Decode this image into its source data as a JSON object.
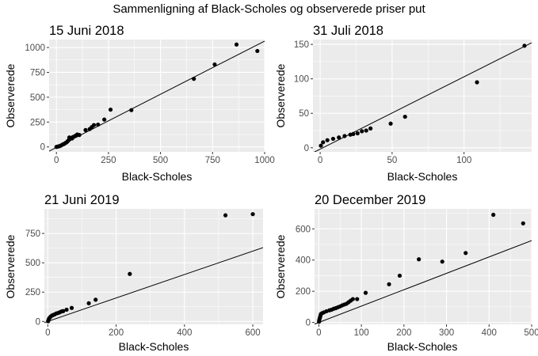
{
  "figure": {
    "title": "Sammenligning af Black-Scholes og observerede priser put"
  },
  "colors": {
    "panel_background": "#ebebeb",
    "gridline": "#ffffff",
    "point": "#000000",
    "line": "#000000",
    "tick_text": "#4d4d4d"
  },
  "chart_data": [
    {
      "type": "scatter",
      "title": "15 Juni 2018",
      "xlabel": "Black-Scholes",
      "ylabel": "Observerede",
      "xlim": [
        -35,
        1000
      ],
      "ylim": [
        -50,
        1080
      ],
      "xticks": [
        0,
        250,
        500,
        750,
        1000
      ],
      "xtick_labels": [
        "0",
        "250",
        "500",
        "750",
        "1000"
      ],
      "yticks": [
        0,
        250,
        500,
        750,
        1000
      ],
      "ytick_labels": [
        "0",
        "250",
        "500",
        "750",
        "1000"
      ],
      "grid": true,
      "reference_line": {
        "slope": 1.07,
        "intercept": -5
      },
      "points": [
        [
          0,
          0
        ],
        [
          5,
          3
        ],
        [
          10,
          5
        ],
        [
          15,
          8
        ],
        [
          20,
          12
        ],
        [
          25,
          18
        ],
        [
          30,
          25
        ],
        [
          35,
          28
        ],
        [
          40,
          35
        ],
        [
          45,
          42
        ],
        [
          50,
          48
        ],
        [
          55,
          60
        ],
        [
          60,
          70
        ],
        [
          62,
          95
        ],
        [
          65,
          80
        ],
        [
          70,
          90
        ],
        [
          75,
          85
        ],
        [
          80,
          100
        ],
        [
          90,
          110
        ],
        [
          95,
          115
        ],
        [
          100,
          125
        ],
        [
          110,
          120
        ],
        [
          140,
          170
        ],
        [
          160,
          180
        ],
        [
          170,
          200
        ],
        [
          180,
          220
        ],
        [
          200,
          225
        ],
        [
          230,
          275
        ],
        [
          260,
          375
        ],
        [
          360,
          370
        ],
        [
          660,
          685
        ],
        [
          760,
          830
        ],
        [
          865,
          1030
        ],
        [
          965,
          965
        ]
      ]
    },
    {
      "type": "scatter",
      "title": "31 Juli 2018",
      "xlabel": "Black-Scholes",
      "ylabel": "Observerede",
      "xlim": [
        -5,
        147
      ],
      "ylim": [
        -6,
        157
      ],
      "xticks": [
        0,
        50,
        100
      ],
      "xtick_labels": [
        "0",
        "50",
        "100"
      ],
      "yticks": [
        0,
        50,
        100,
        150
      ],
      "ytick_labels": [
        "0",
        "50",
        "100",
        "150"
      ],
      "grid": true,
      "reference_line": {
        "slope": 1.05,
        "intercept": -2
      },
      "points": [
        [
          0.5,
          3
        ],
        [
          2,
          8
        ],
        [
          5,
          11
        ],
        [
          9,
          13
        ],
        [
          13,
          15
        ],
        [
          17,
          17
        ],
        [
          21,
          19
        ],
        [
          23,
          20
        ],
        [
          26,
          21
        ],
        [
          29,
          24
        ],
        [
          32,
          25
        ],
        [
          35,
          28
        ],
        [
          49,
          35
        ],
        [
          59,
          45
        ],
        [
          109,
          95
        ],
        [
          142,
          148
        ]
      ]
    },
    {
      "type": "scatter",
      "title": "21 Juni 2019",
      "xlabel": "Black-Scholes",
      "ylabel": "Observerede",
      "xlim": [
        -10,
        630
      ],
      "ylim": [
        -25,
        960
      ],
      "xticks": [
        0,
        200,
        400,
        600
      ],
      "xtick_labels": [
        "0",
        "200",
        "400",
        "600"
      ],
      "yticks": [
        0,
        250,
        500,
        750
      ],
      "ytick_labels": [
        "0",
        "250",
        "500",
        "750"
      ],
      "grid": true,
      "reference_line": {
        "slope": 1.0,
        "intercept": 0
      },
      "points": [
        [
          1,
          2
        ],
        [
          2,
          10
        ],
        [
          3,
          20
        ],
        [
          5,
          30
        ],
        [
          8,
          40
        ],
        [
          12,
          50
        ],
        [
          16,
          55
        ],
        [
          20,
          60
        ],
        [
          25,
          68
        ],
        [
          30,
          72
        ],
        [
          35,
          78
        ],
        [
          40,
          85
        ],
        [
          45,
          88
        ],
        [
          55,
          100
        ],
        [
          70,
          115
        ],
        [
          120,
          155
        ],
        [
          140,
          185
        ],
        [
          240,
          405
        ],
        [
          520,
          905
        ],
        [
          600,
          915
        ]
      ]
    },
    {
      "type": "scatter",
      "title": "20 December 2019",
      "xlabel": "Black-Scholes",
      "ylabel": "Observerede",
      "xlim": [
        -10,
        500
      ],
      "ylim": [
        -12,
        728
      ],
      "xticks": [
        0,
        100,
        200,
        300,
        400,
        500
      ],
      "xtick_labels": [
        "0",
        "100",
        "200",
        "300",
        "400",
        "500"
      ],
      "yticks": [
        0,
        200,
        400,
        600
      ],
      "ytick_labels": [
        "0",
        "200",
        "400",
        "600"
      ],
      "grid": true,
      "reference_line": {
        "slope": 1.05,
        "intercept": 0
      },
      "points": [
        [
          0.5,
          5
        ],
        [
          1,
          15
        ],
        [
          2,
          25
        ],
        [
          3,
          35
        ],
        [
          4,
          45
        ],
        [
          5,
          55
        ],
        [
          8,
          60
        ],
        [
          12,
          65
        ],
        [
          18,
          72
        ],
        [
          25,
          78
        ],
        [
          30,
          82
        ],
        [
          35,
          88
        ],
        [
          40,
          92
        ],
        [
          45,
          98
        ],
        [
          50,
          103
        ],
        [
          55,
          110
        ],
        [
          60,
          115
        ],
        [
          65,
          120
        ],
        [
          70,
          130
        ],
        [
          75,
          140
        ],
        [
          80,
          150
        ],
        [
          90,
          150
        ],
        [
          110,
          190
        ],
        [
          165,
          245
        ],
        [
          190,
          300
        ],
        [
          235,
          405
        ],
        [
          290,
          390
        ],
        [
          345,
          445
        ],
        [
          410,
          690
        ],
        [
          480,
          635
        ]
      ]
    }
  ]
}
